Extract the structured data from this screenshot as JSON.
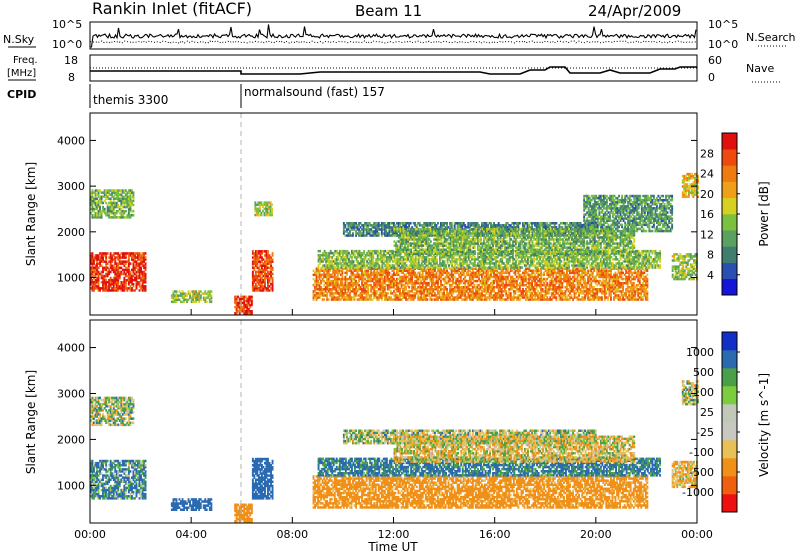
{
  "header": {
    "station": "Rankin Inlet (fitACF)",
    "beam": "Beam 11",
    "date": "24/Apr/2009"
  },
  "left_labels": {
    "nsky": "N.Sky",
    "freq_line1": "Freq.",
    "freq_line2": "[MHz]",
    "cpid": "CPID"
  },
  "right_labels": {
    "nsearch": "N.Search",
    "nave": "Nave"
  },
  "cpid_segments": [
    {
      "label": "themis 3300",
      "start_hour": 0
    },
    {
      "label": "normalsound (fast) 157",
      "start_hour": 6
    }
  ],
  "noise_axis": {
    "left_top": "10^5",
    "left_bottom": "10^0",
    "right_top": "10^5",
    "right_bottom": "10^0"
  },
  "freq_axis": {
    "left_top": "18",
    "left_bottom": "8",
    "right_top": "60",
    "right_bottom": "0"
  },
  "colors": {
    "power": [
      "#1515d8",
      "#2a4fb0",
      "#3f7e6e",
      "#5aa060",
      "#7cc040",
      "#d6d020",
      "#f0a018",
      "#ee7a10",
      "#ee4a10",
      "#e01010"
    ],
    "velocity": [
      "#ee1010",
      "#ee6010",
      "#f09018",
      "#e8c058",
      "#c8c8c0",
      "#c0c8b8",
      "#7ccc40",
      "#4aa048",
      "#2a6ab0",
      "#1030c8"
    ],
    "gray_dash": "#b4b4b4"
  },
  "chart_data": [
    {
      "type": "heatmap",
      "name_printed": "",
      "xlabel": "Time UT",
      "ylabel": "Slant Range [km]",
      "xlim": [
        0,
        24
      ],
      "ylim": [
        180,
        4600
      ],
      "xticks": [
        "00:00",
        "04:00",
        "08:00",
        "12:00",
        "16:00",
        "20:00",
        "00:00"
      ],
      "yticks": [
        1000,
        2000,
        3000,
        4000
      ],
      "colorbar": {
        "label": "Power [dB]",
        "ticks": [
          "4",
          "8",
          "12",
          "16",
          "20",
          "24",
          "28"
        ],
        "range": [
          0,
          30
        ]
      },
      "regions": [
        {
          "t": [
            0.0,
            2.2
          ],
          "r": [
            700,
            1550
          ],
          "level": 27
        },
        {
          "t": [
            0.0,
            1.7
          ],
          "r": [
            2300,
            2900
          ],
          "level": 12
        },
        {
          "t": [
            3.2,
            4.8
          ],
          "r": [
            450,
            700
          ],
          "level": 14
        },
        {
          "t": [
            5.7,
            6.4
          ],
          "r": [
            200,
            600
          ],
          "level": 26
        },
        {
          "t": [
            6.4,
            7.2
          ],
          "r": [
            700,
            1600
          ],
          "level": 26
        },
        {
          "t": [
            6.5,
            7.2
          ],
          "r": [
            2350,
            2650
          ],
          "level": 14
        },
        {
          "t": [
            8.8,
            22.0
          ],
          "r": [
            500,
            1200
          ],
          "level": 22
        },
        {
          "t": [
            9.0,
            22.5
          ],
          "r": [
            1200,
            1600
          ],
          "level": 13
        },
        {
          "t": [
            10.0,
            20.0
          ],
          "r": [
            1900,
            2200
          ],
          "level": 8
        },
        {
          "t": [
            12.0,
            21.5
          ],
          "r": [
            1500,
            2050
          ],
          "level": 12
        },
        {
          "t": [
            19.5,
            23.0
          ],
          "r": [
            2000,
            2800
          ],
          "level": 10
        },
        {
          "t": [
            23.0,
            24.0
          ],
          "r": [
            950,
            1500
          ],
          "level": 14
        },
        {
          "t": [
            23.4,
            24.0
          ],
          "r": [
            2750,
            3250
          ],
          "level": 18
        }
      ]
    },
    {
      "type": "heatmap",
      "xlabel": "Time UT",
      "ylabel": "Slant Range [km]",
      "xlim": [
        0,
        24
      ],
      "ylim": [
        180,
        4600
      ],
      "xticks": [
        "00:00",
        "04:00",
        "08:00",
        "12:00",
        "16:00",
        "20:00",
        "00:00"
      ],
      "yticks": [
        1000,
        2000,
        3000,
        4000
      ],
      "colorbar": {
        "label": "Velocity [m s^-1]",
        "ticks": [
          "1000",
          "500",
          "100",
          "25",
          "-25",
          "-100",
          "-500",
          "-1000"
        ]
      },
      "regions": [
        {
          "t": [
            0.0,
            2.2
          ],
          "r": [
            700,
            1550
          ],
          "velocity": 100
        },
        {
          "t": [
            0.0,
            1.7
          ],
          "r": [
            2300,
            2900
          ],
          "velocity": 0
        },
        {
          "t": [
            3.2,
            4.8
          ],
          "r": [
            450,
            700
          ],
          "velocity": 300
        },
        {
          "t": [
            5.7,
            6.4
          ],
          "r": [
            200,
            600
          ],
          "velocity": -300
        },
        {
          "t": [
            6.4,
            7.2
          ],
          "r": [
            700,
            1600
          ],
          "velocity": 300
        },
        {
          "t": [
            8.8,
            22.0
          ],
          "r": [
            500,
            1200
          ],
          "velocity": -200
        },
        {
          "t": [
            9.0,
            22.5
          ],
          "r": [
            1200,
            1600
          ],
          "velocity": 150
        },
        {
          "t": [
            10.0,
            20.0
          ],
          "r": [
            1900,
            2200
          ],
          "velocity": 0
        },
        {
          "t": [
            12.0,
            21.5
          ],
          "r": [
            1500,
            2050
          ],
          "velocity": -50
        },
        {
          "t": [
            23.0,
            24.0
          ],
          "r": [
            950,
            1500
          ],
          "velocity": -100
        },
        {
          "t": [
            23.4,
            24.0
          ],
          "r": [
            2750,
            3250
          ],
          "velocity": 0
        }
      ]
    }
  ]
}
